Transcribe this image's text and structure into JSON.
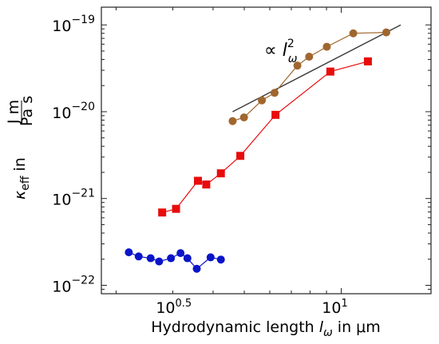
{
  "chart_data": {
    "type": "scatter",
    "xscale": "log",
    "yscale": "log",
    "xlim": [
      1.8,
      19.0
    ],
    "ylim": [
      8e-23,
      1.6e-19
    ],
    "x_ticks": [
      {
        "value": 3.1623,
        "label_base": "10",
        "label_exp": "0.5"
      },
      {
        "value": 10,
        "label_base": "10",
        "label_exp": "1"
      }
    ],
    "y_ticks": [
      {
        "value": 1e-22,
        "label_base": "10",
        "label_exp": "−22"
      },
      {
        "value": 1e-21,
        "label_base": "10",
        "label_exp": "−21"
      },
      {
        "value": 1e-20,
        "label_base": "10",
        "label_exp": "−20"
      },
      {
        "value": 1e-19,
        "label_base": "10",
        "label_exp": "−19"
      }
    ],
    "xlabel": {
      "prefix": "Hydrodynamic length ",
      "symbol": "l",
      "sub": "ω",
      "suffix": " in μm"
    },
    "ylabel": {
      "symbol": "κ",
      "sub": "eff",
      "mid": " in ",
      "num": "J m",
      "den": "Pa s"
    },
    "annotation": {
      "prefix": "∝ ",
      "symbol": "l",
      "sub": "ω",
      "sup": "2"
    },
    "reference_line": {
      "x": [
        4.6,
        15.3
      ],
      "y": [
        1e-20,
        1e-19
      ],
      "color": "#3a3a3a"
    },
    "series": [
      {
        "color": "#0a14c8",
        "marker": "circle",
        "x": [
          2.19,
          2.35,
          2.56,
          2.72,
          2.96,
          3.17,
          3.33,
          3.56,
          3.93,
          4.23
        ],
        "y": [
          2.4e-22,
          2.15e-22,
          2.05e-22,
          1.88e-22,
          2.05e-22,
          2.35e-22,
          2.05e-22,
          1.55e-22,
          2.1e-22,
          1.98e-22
        ]
      },
      {
        "color": "#e80c0c",
        "marker": "square",
        "x": [
          2.78,
          3.07,
          3.59,
          3.81,
          4.23,
          4.86,
          6.25,
          9.25,
          12.1
        ],
        "y": [
          6.9e-22,
          7.6e-22,
          1.6e-21,
          1.45e-21,
          1.95e-21,
          3.1e-21,
          9.2e-21,
          2.9e-20,
          3.8e-20
        ]
      },
      {
        "color": "#a0662e",
        "marker": "circle",
        "x": [
          4.6,
          4.99,
          5.67,
          6.21,
          7.31,
          7.95,
          9.02,
          10.9,
          13.8
        ],
        "y": [
          7.8e-21,
          8.6e-21,
          1.35e-20,
          1.65e-20,
          3.4e-20,
          4.3e-20,
          5.6e-20,
          8e-20,
          8.2e-20
        ]
      }
    ]
  }
}
